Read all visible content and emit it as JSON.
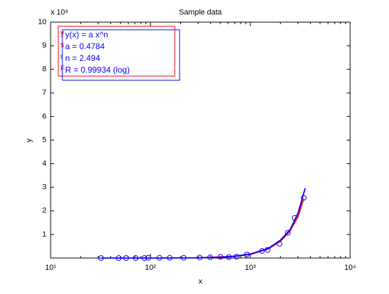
{
  "chart_data": {
    "type": "scatter",
    "title": "Sample data",
    "x_label": "x",
    "y_label": "y",
    "y_multiplier": "x 10⁸",
    "xscale": "log",
    "xlim": [
      10,
      10000
    ],
    "xticks": [
      {
        "value": 10,
        "label": "10¹"
      },
      {
        "value": 100,
        "label": "10²"
      },
      {
        "value": 1000,
        "label": "10³"
      },
      {
        "value": 10000,
        "label": "10⁴"
      }
    ],
    "ylim": [
      0,
      10
    ],
    "yticks": [
      1,
      2,
      3,
      4,
      5,
      6,
      7,
      8,
      9,
      10
    ],
    "series": [
      {
        "color": "#0000ff",
        "marker": "circle",
        "x": [
          32,
          48,
          57,
          71,
          87,
          95,
          123,
          156,
          215,
          311,
          396,
          502,
          609,
          727,
          923,
          1312,
          1492,
          1959,
          2371,
          2780,
          3429
        ],
        "values": [
          0,
          0,
          0,
          0,
          0,
          0.01,
          0.01,
          0.01,
          0.01,
          0.02,
          0.03,
          0.05,
          0.04,
          0.06,
          0.15,
          0.3,
          0.35,
          0.6,
          1.07,
          1.7,
          2.55
        ]
      },
      {
        "color": "#ff0000",
        "marker": "line",
        "x": [
          300,
          700,
          1000,
          1500,
          2000,
          2500,
          3000,
          3429
        ],
        "values": [
          0.01,
          0.07,
          0.15,
          0.38,
          0.7,
          1.15,
          1.75,
          2.52
        ]
      },
      {
        "color": "#0000ff",
        "marker": "line",
        "x": [
          32,
          100,
          300,
          500,
          700,
          1000,
          1500,
          2000,
          2500,
          3000,
          3540
        ],
        "values": [
          0,
          0,
          0.01,
          0.03,
          0.08,
          0.17,
          0.4,
          0.75,
          1.2,
          1.9,
          2.96
        ]
      }
    ],
    "legend_text": [
      "y(x) = a x^n",
      "a = 0.4784",
      "n = 2.494",
      "R = 0.99934  (log)"
    ],
    "legend_fragments": [
      "y",
      "s",
      "r",
      "F"
    ]
  }
}
